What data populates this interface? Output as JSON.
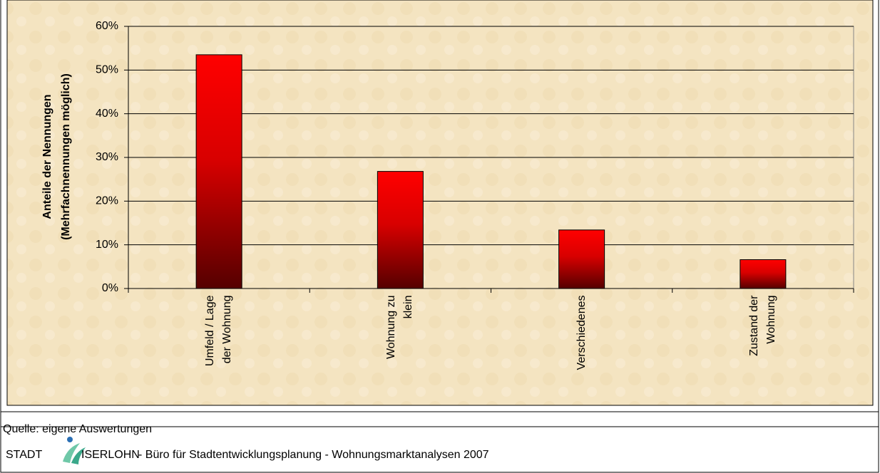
{
  "chart_data": {
    "type": "bar",
    "ylabel": [
      "Anteile der Nennungen",
      "(Mehrfachnennungen möglich)"
    ],
    "categories": [
      "Umfeld / Lage der Wohnung",
      "Wohnung zu klein",
      "Verschiedenes",
      "Zustand der Wohnung"
    ],
    "values": [
      53.5,
      26.8,
      13.4,
      6.6
    ],
    "color": "#ff0000",
    "ylim": [
      0,
      60
    ],
    "yticks": [
      {
        "value": 0,
        "label": "0%"
      },
      {
        "value": 10,
        "label": "10%"
      },
      {
        "value": 20,
        "label": "20%"
      },
      {
        "value": 30,
        "label": "30%"
      },
      {
        "value": 40,
        "label": "40%"
      },
      {
        "value": 50,
        "label": "50%"
      },
      {
        "value": 60,
        "label": "60%"
      }
    ],
    "grid": true
  },
  "source": "Quelle: eigene Auswertungen",
  "footer": {
    "brand_left": "STADT",
    "brand_right": "ISERLOHN",
    "text": "- Büro für Stadtentwicklungsplanung - Wohnungsmarktanalysen 2007"
  }
}
